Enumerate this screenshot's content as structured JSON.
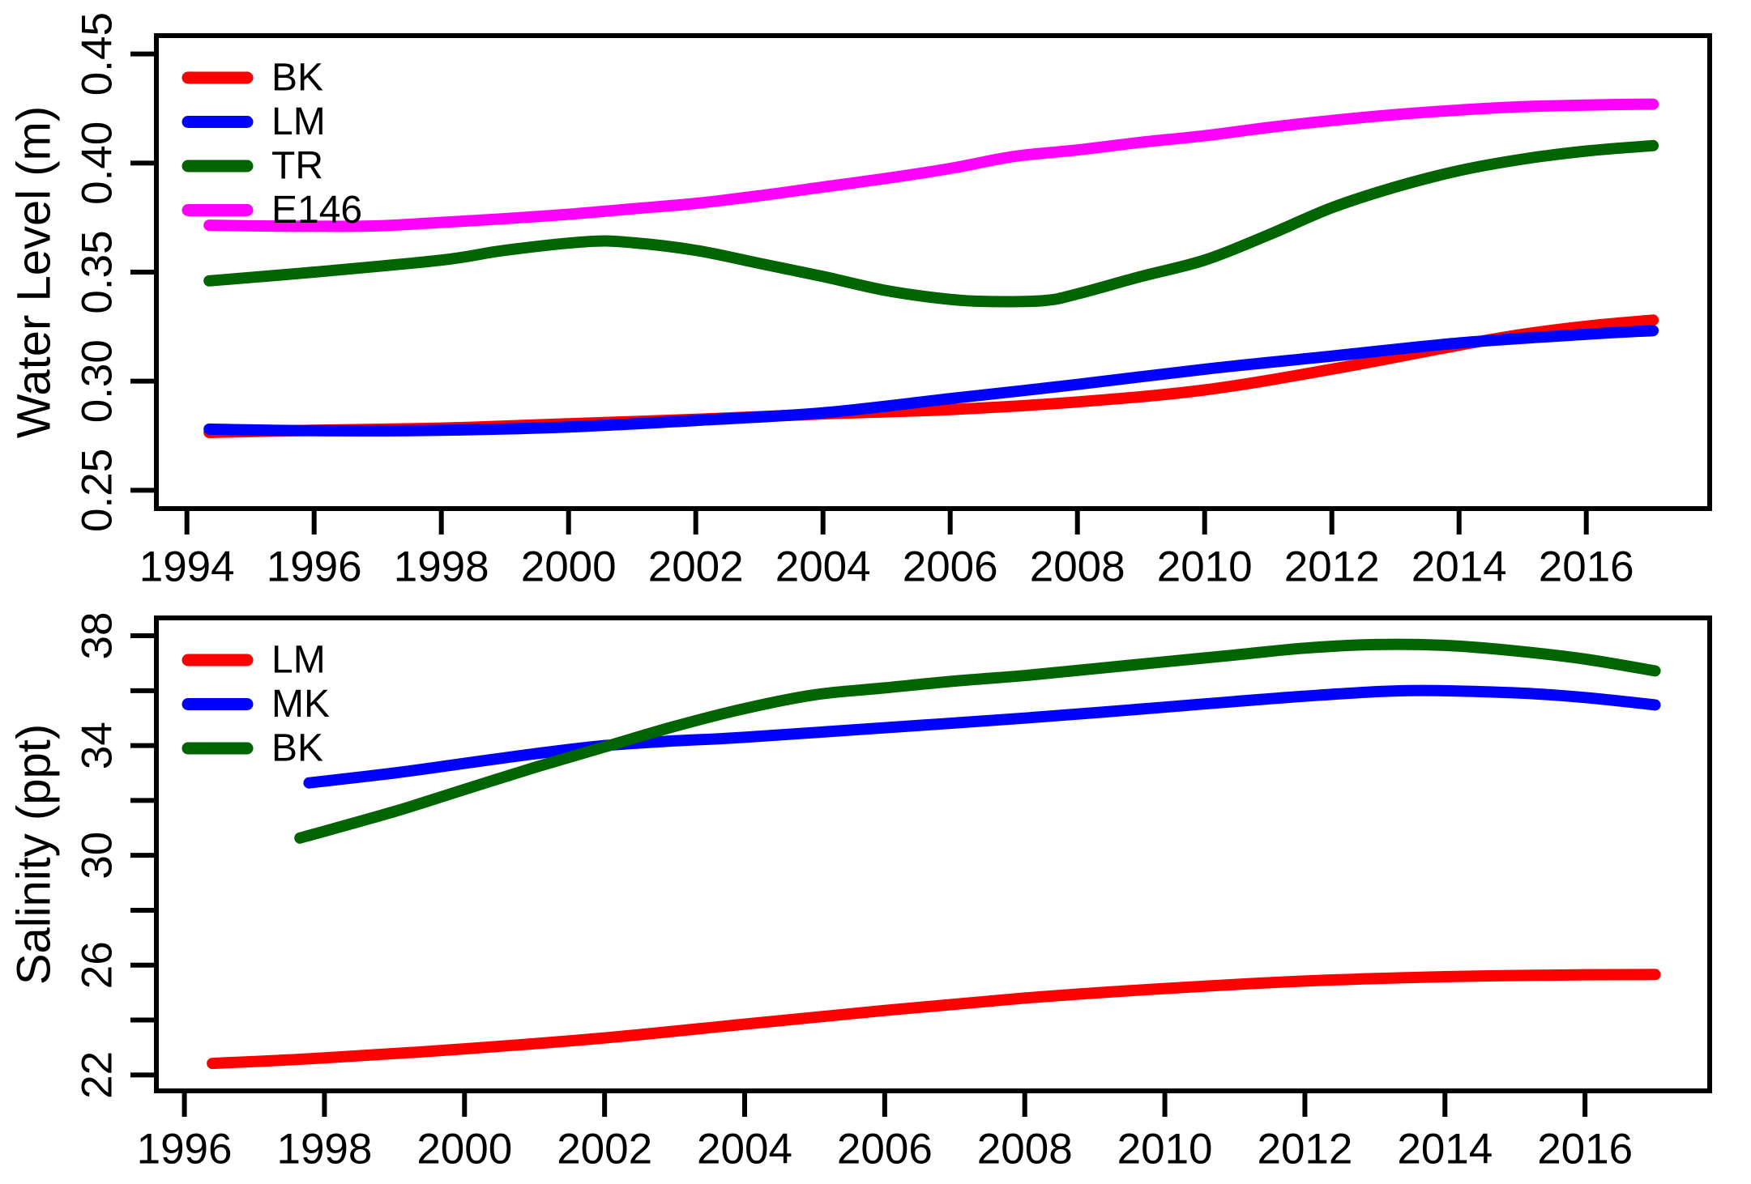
{
  "figure": {
    "background": "#FFFFFF",
    "axis_color": "#000000"
  },
  "chart_data": [
    {
      "id": "water_level",
      "type": "line",
      "title": "",
      "xlabel": "",
      "ylabel": "Water Level (m)",
      "grid": false,
      "legend_position": "top-left",
      "xlim": [
        1993.52,
        2017.94
      ],
      "ylim": [
        0.2416,
        0.4584
      ],
      "x_ticks": [
        1994,
        1996,
        1998,
        2000,
        2002,
        2004,
        2006,
        2008,
        2010,
        2012,
        2014,
        2016
      ],
      "x_tick_labels": [
        "1994",
        "1996",
        "1998",
        "2000",
        "2002",
        "2004",
        "2006",
        "2008",
        "2010",
        "2012",
        "2014",
        "2016"
      ],
      "y_ticks": [
        0.25,
        0.3,
        0.35,
        0.4,
        0.45
      ],
      "y_tick_labels": [
        "0.25",
        "0.30",
        "0.35",
        "0.40",
        "0.45"
      ],
      "legend": [
        {
          "label": "BK",
          "color": "#FF0000"
        },
        {
          "label": "LM",
          "color": "#0000FF"
        },
        {
          "label": "TR",
          "color": "#006400"
        },
        {
          "label": "E146",
          "color": "#FF00FF"
        }
      ],
      "series": [
        {
          "name": "BK",
          "color": "#FF0000",
          "points": [
            [
              1994.35,
              0.2765
            ],
            [
              1996,
              0.2775
            ],
            [
              1998,
              0.2785
            ],
            [
              2000,
              0.2805
            ],
            [
              2002,
              0.2825
            ],
            [
              2004,
              0.285
            ],
            [
              2006,
              0.287
            ],
            [
              2008,
              0.2905
            ],
            [
              2010,
              0.296
            ],
            [
              2012,
              0.3055
            ],
            [
              2014,
              0.3165
            ],
            [
              2015,
              0.3215
            ],
            [
              2016,
              0.3252
            ],
            [
              2017.05,
              0.328
            ]
          ]
        },
        {
          "name": "LM",
          "color": "#0000FF",
          "points": [
            [
              1994.35,
              0.278
            ],
            [
              1996,
              0.2773
            ],
            [
              1998,
              0.2775
            ],
            [
              2000,
              0.279
            ],
            [
              2002,
              0.282
            ],
            [
              2004,
              0.2855
            ],
            [
              2006,
              0.292
            ],
            [
              2008,
              0.2985
            ],
            [
              2010,
              0.3055
            ],
            [
              2012,
              0.3115
            ],
            [
              2014,
              0.3175
            ],
            [
              2016,
              0.3215
            ],
            [
              2017.05,
              0.3232
            ]
          ]
        },
        {
          "name": "TR",
          "color": "#006400",
          "points": [
            [
              1994.35,
              0.346
            ],
            [
              1996,
              0.35
            ],
            [
              1998,
              0.3555
            ],
            [
              1999,
              0.36
            ],
            [
              2000.3,
              0.364
            ],
            [
              2001,
              0.3635
            ],
            [
              2002,
              0.36
            ],
            [
              2003,
              0.354
            ],
            [
              2004,
              0.348
            ],
            [
              2005,
              0.3415
            ],
            [
              2006,
              0.3375
            ],
            [
              2006.7,
              0.3365
            ],
            [
              2007.5,
              0.337
            ],
            [
              2008,
              0.34
            ],
            [
              2009,
              0.348
            ],
            [
              2010,
              0.3555
            ],
            [
              2011,
              0.367
            ],
            [
              2012,
              0.3795
            ],
            [
              2013,
              0.389
            ],
            [
              2014,
              0.3965
            ],
            [
              2015,
              0.4018
            ],
            [
              2016,
              0.4055
            ],
            [
              2017.05,
              0.408
            ]
          ]
        },
        {
          "name": "E146",
          "color": "#FF00FF",
          "points": [
            [
              1994.35,
              0.3715
            ],
            [
              1995,
              0.3712
            ],
            [
              1996,
              0.371
            ],
            [
              1997,
              0.3712
            ],
            [
              1998,
              0.3728
            ],
            [
              1999,
              0.3745
            ],
            [
              2000,
              0.3765
            ],
            [
              2001,
              0.379
            ],
            [
              2002,
              0.3815
            ],
            [
              2003,
              0.385
            ],
            [
              2004,
              0.389
            ],
            [
              2005,
              0.393
            ],
            [
              2006,
              0.3975
            ],
            [
              2007,
              0.403
            ],
            [
              2008,
              0.406
            ],
            [
              2009,
              0.4095
            ],
            [
              2010,
              0.4125
            ],
            [
              2011,
              0.4163
            ],
            [
              2012,
              0.4195
            ],
            [
              2013,
              0.4222
            ],
            [
              2014,
              0.4243
            ],
            [
              2015,
              0.4258
            ],
            [
              2016,
              0.4266
            ],
            [
              2017.05,
              0.427
            ]
          ]
        }
      ]
    },
    {
      "id": "salinity",
      "type": "line",
      "title": "",
      "xlabel": "",
      "ylabel": "Salinity (ppt)",
      "grid": false,
      "legend_position": "top-left",
      "xlim": [
        1995.6,
        2017.78
      ],
      "ylim": [
        21.42,
        38.65
      ],
      "x_ticks": [
        1996,
        1998,
        2000,
        2002,
        2004,
        2006,
        2008,
        2010,
        2012,
        2014,
        2016
      ],
      "x_tick_labels": [
        "1996",
        "1998",
        "2000",
        "2002",
        "2004",
        "2006",
        "2008",
        "2010",
        "2012",
        "2014",
        "2016"
      ],
      "y_ticks": [
        22,
        24,
        26,
        28,
        30,
        32,
        34,
        36,
        38
      ],
      "y_tick_labels": [
        "22",
        "",
        "26",
        "",
        "30",
        "",
        "34",
        "",
        "38"
      ],
      "legend": [
        {
          "label": "LM",
          "color": "#FF0000"
        },
        {
          "label": "MK",
          "color": "#0000FF"
        },
        {
          "label": "BK",
          "color": "#006400"
        }
      ],
      "series": [
        {
          "name": "LM",
          "color": "#FF0000",
          "points": [
            [
              1996.4,
              22.42
            ],
            [
              1998,
              22.62
            ],
            [
              2000,
              22.95
            ],
            [
              2002,
              23.35
            ],
            [
              2004,
              23.85
            ],
            [
              2006,
              24.35
            ],
            [
              2008,
              24.8
            ],
            [
              2010,
              25.15
            ],
            [
              2012,
              25.42
            ],
            [
              2014,
              25.58
            ],
            [
              2016,
              25.65
            ],
            [
              2017,
              25.66
            ]
          ]
        },
        {
          "name": "MK",
          "color": "#0000FF",
          "points": [
            [
              1997.78,
              32.64
            ],
            [
              1999,
              33.0
            ],
            [
              2000,
              33.35
            ],
            [
              2001,
              33.7
            ],
            [
              2002,
              34.0
            ],
            [
              2003,
              34.17
            ],
            [
              2004,
              34.3
            ],
            [
              2006,
              34.65
            ],
            [
              2008,
              35.0
            ],
            [
              2010,
              35.4
            ],
            [
              2012,
              35.8
            ],
            [
              2013.5,
              36.0
            ],
            [
              2015,
              35.92
            ],
            [
              2016,
              35.75
            ],
            [
              2017,
              35.48
            ]
          ]
        },
        {
          "name": "BK",
          "color": "#006400",
          "points": [
            [
              1997.65,
              30.63
            ],
            [
              1999,
              31.6
            ],
            [
              2000,
              32.4
            ],
            [
              2001,
              33.2
            ],
            [
              2002,
              33.95
            ],
            [
              2003,
              34.7
            ],
            [
              2004,
              35.35
            ],
            [
              2005,
              35.85
            ],
            [
              2006,
              36.1
            ],
            [
              2007,
              36.35
            ],
            [
              2008,
              36.55
            ],
            [
              2009,
              36.8
            ],
            [
              2010,
              37.05
            ],
            [
              2011,
              37.3
            ],
            [
              2012,
              37.55
            ],
            [
              2013,
              37.68
            ],
            [
              2014,
              37.65
            ],
            [
              2015,
              37.45
            ],
            [
              2016,
              37.15
            ],
            [
              2017,
              36.72
            ]
          ]
        }
      ]
    }
  ]
}
